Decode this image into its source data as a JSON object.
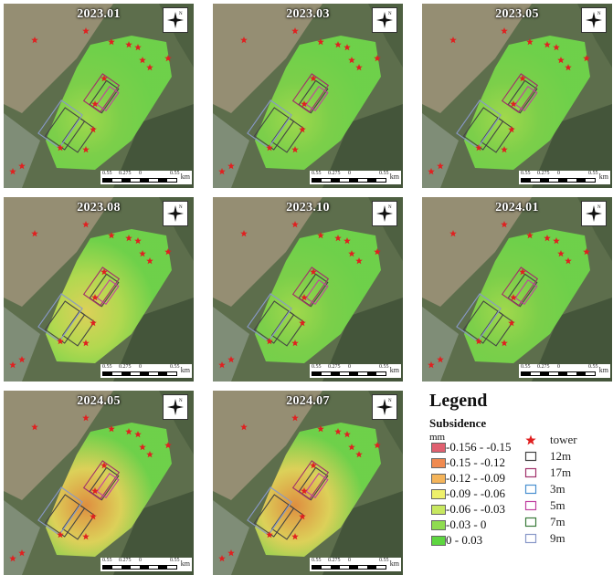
{
  "panels": [
    {
      "date": "2023.01",
      "intensity": 0.05
    },
    {
      "date": "2023.03",
      "intensity": 0.1
    },
    {
      "date": "2023.05",
      "intensity": 0.15
    },
    {
      "date": "2023.08",
      "intensity": 0.45
    },
    {
      "date": "2023.10",
      "intensity": 0.3
    },
    {
      "date": "2024.01",
      "intensity": 0.35
    },
    {
      "date": "2024.05",
      "intensity": 0.85
    },
    {
      "date": "2024.07",
      "intensity": 0.9
    }
  ],
  "scale": {
    "ticks": [
      "0.55",
      "0.275",
      "0",
      "0.55"
    ],
    "unit": "km"
  },
  "north_label": "N",
  "legend": {
    "title": "Legend",
    "subtitle": "Subsidence",
    "unit": "mm",
    "classes": [
      {
        "label": "-0.156 - -0.15",
        "color": "#e06070"
      },
      {
        "label": "-0.15 - -0.12",
        "color": "#f08a50"
      },
      {
        "label": "-0.12 - -0.09",
        "color": "#f4b45a"
      },
      {
        "label": "-0.09 - -0.06",
        "color": "#eef06a"
      },
      {
        "label": "-0.06 - -0.03",
        "color": "#c8e860"
      },
      {
        "label": "-0.03 - 0",
        "color": "#8fdc50"
      },
      {
        "label": "0 - 0.03",
        "color": "#5ed640"
      }
    ],
    "entries": [
      {
        "label": "tower",
        "symbol": "red-star",
        "color": "#e02020"
      },
      {
        "label": "12m",
        "symbol": "box",
        "color": "#444444"
      },
      {
        "label": "17m",
        "symbol": "box",
        "color": "#a0306a"
      },
      {
        "label": "3m",
        "symbol": "box",
        "color": "#4a90d0"
      },
      {
        "label": "5m",
        "symbol": "box",
        "color": "#c040a0"
      },
      {
        "label": "7m",
        "symbol": "box",
        "color": "#3a7a3a"
      },
      {
        "label": "9m",
        "symbol": "box",
        "color": "#8898c8"
      }
    ]
  }
}
